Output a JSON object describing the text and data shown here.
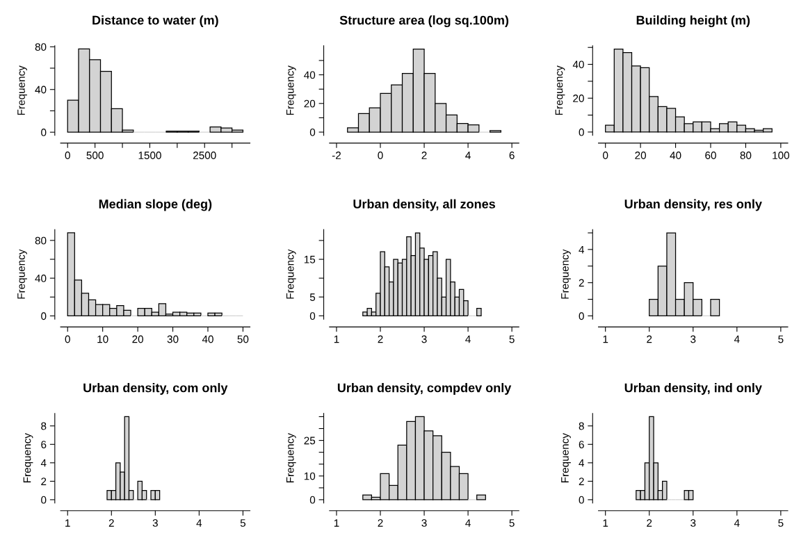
{
  "chart_data": [
    {
      "type": "histogram",
      "title": "Distance to water (m)",
      "ylabel": "Frequency",
      "color": "#d3d3d3",
      "bins": [
        0,
        200,
        400,
        600,
        800,
        1000,
        1200,
        1400,
        1600,
        1800,
        2000,
        2200,
        2400,
        2600,
        2800,
        3000,
        3200
      ],
      "values": [
        30,
        78,
        68,
        57,
        22,
        2,
        0,
        0,
        0,
        1,
        1,
        1,
        0,
        5,
        4,
        2
      ],
      "xlim": [
        -128,
        3328
      ],
      "ylim": [
        -3,
        81
      ],
      "xticks": [
        0,
        500,
        {
          "value": 1000,
          "label": null
        },
        1500,
        {
          "value": 2000,
          "label": null
        },
        2500,
        {
          "value": 3000,
          "label": null
        }
      ],
      "yticks": [
        0,
        {
          "value": 20,
          "label": null
        },
        40,
        {
          "value": 60,
          "label": null
        },
        80
      ]
    },
    {
      "type": "histogram",
      "title": "Structure area (log sq.100m)",
      "ylabel": "Frequency",
      "color": "#d3d3d3",
      "bins": [
        -1.5,
        -1,
        -0.5,
        0,
        0.5,
        1,
        1.5,
        2,
        2.5,
        3,
        3.5,
        4,
        4.5,
        5,
        5.5
      ],
      "values": [
        3,
        13,
        17,
        27,
        33,
        41,
        58,
        41,
        20,
        12,
        6,
        5,
        0,
        1
      ],
      "xlim": [
        -2.32,
        6.32
      ],
      "ylim": [
        -2.3,
        60.3
      ],
      "xticks": [
        -2,
        0,
        2,
        4,
        6
      ],
      "yticks": [
        0,
        {
          "value": 10,
          "label": null
        },
        20,
        {
          "value": 30,
          "label": null
        },
        40,
        {
          "value": 50,
          "label": null
        }
      ]
    },
    {
      "type": "histogram",
      "title": "Building height (m)",
      "ylabel": "Frequency",
      "color": "#d3d3d3",
      "bins": [
        0,
        5,
        10,
        15,
        20,
        25,
        30,
        35,
        40,
        45,
        50,
        55,
        60,
        65,
        70,
        75,
        80,
        85,
        90,
        95
      ],
      "values": [
        4,
        49,
        47,
        39,
        38,
        21,
        15,
        14,
        9,
        5,
        6,
        6,
        2,
        5,
        6,
        4,
        2,
        1,
        2
      ],
      "xlim": [
        -4,
        104
      ],
      "ylim": [
        -2,
        51
      ],
      "xticks": [
        0,
        20,
        40,
        60,
        80,
        100
      ],
      "yticks": [
        0,
        {
          "value": 10,
          "label": null
        },
        20,
        {
          "value": 30,
          "label": null
        },
        40,
        {
          "value": 50,
          "label": null
        }
      ]
    },
    {
      "type": "histogram",
      "title": "Median slope (deg)",
      "ylabel": "Frequency",
      "color": "#d3d3d3",
      "bins": [
        0,
        2,
        4,
        6,
        8,
        10,
        12,
        14,
        16,
        18,
        20,
        22,
        24,
        26,
        28,
        30,
        32,
        34,
        36,
        38,
        40,
        42,
        44,
        46,
        48,
        50
      ],
      "values": [
        88,
        38,
        24,
        17,
        12,
        12,
        8,
        11,
        6,
        0,
        8,
        8,
        4,
        13,
        2,
        4,
        4,
        3,
        3,
        0,
        3,
        3,
        0,
        0,
        0
      ],
      "xlim": [
        -2,
        52
      ],
      "ylim": [
        -3.5,
        91.5
      ],
      "xticks": [
        0,
        10,
        20,
        30,
        40,
        50
      ],
      "yticks": [
        0,
        {
          "value": 20,
          "label": null
        },
        40,
        {
          "value": 60,
          "label": null
        },
        80
      ]
    },
    {
      "type": "histogram",
      "title": "Urban density, all zones",
      "ylabel": "Frequency",
      "color": "#d3d3d3",
      "bins": [
        1.6,
        1.7,
        1.8,
        1.9,
        2.0,
        2.1,
        2.2,
        2.3,
        2.4,
        2.5,
        2.6,
        2.7,
        2.8,
        2.9,
        3.0,
        3.1,
        3.2,
        3.3,
        3.4,
        3.5,
        3.6,
        3.7,
        3.8,
        3.9,
        4.0,
        4.1,
        4.2,
        4.3
      ],
      "values": [
        1,
        2,
        1,
        6,
        17,
        13,
        9,
        15,
        14,
        15,
        21,
        16,
        22,
        18,
        15,
        16,
        17,
        10,
        5,
        15,
        9,
        5,
        7,
        4,
        0,
        0,
        2
      ],
      "xlim": [
        0.84,
        5.16
      ],
      "ylim": [
        -0.9,
        22.9
      ],
      "xticks": [
        1,
        2,
        3,
        4,
        5
      ],
      "yticks": [
        0,
        5,
        {
          "value": 10,
          "label": null
        },
        15,
        {
          "value": 20,
          "label": null
        }
      ]
    },
    {
      "type": "histogram",
      "title": "Urban density, res only",
      "ylabel": "Frequency",
      "color": "#d3d3d3",
      "bins": [
        2.0,
        2.2,
        2.4,
        2.6,
        2.8,
        3.0,
        3.2,
        3.4,
        3.6
      ],
      "values": [
        1,
        3,
        5,
        1,
        2,
        1,
        0,
        1
      ],
      "xlim": [
        0.84,
        5.16
      ],
      "ylim": [
        -0.2,
        5.2
      ],
      "xticks": [
        1,
        2,
        3,
        4,
        5
      ],
      "yticks": [
        0,
        {
          "value": 1,
          "label": null
        },
        2,
        {
          "value": 3,
          "label": null
        },
        4,
        {
          "value": 5,
          "label": null
        }
      ]
    },
    {
      "type": "histogram",
      "title": "Urban density, com only",
      "ylabel": "Frequency",
      "color": "#d3d3d3",
      "bins": [
        1.9,
        2.0,
        2.1,
        2.2,
        2.3,
        2.4,
        2.5,
        2.6,
        2.7,
        2.8,
        2.9,
        3.0,
        3.1
      ],
      "values": [
        1,
        1,
        4,
        3,
        9,
        1,
        0,
        2,
        1,
        0,
        1,
        1
      ],
      "xlim": [
        0.84,
        5.16
      ],
      "ylim": [
        -0.36,
        9.36
      ],
      "xticks": [
        1,
        2,
        3,
        4,
        5
      ],
      "yticks": [
        0,
        2,
        4,
        6,
        8
      ]
    },
    {
      "type": "histogram",
      "title": "Urban density, compdev only",
      "ylabel": "Frequency",
      "color": "#d3d3d3",
      "bins": [
        1.6,
        1.8,
        2.0,
        2.2,
        2.4,
        2.6,
        2.8,
        3.0,
        3.2,
        3.4,
        3.6,
        3.8,
        4.0,
        4.2,
        4.4
      ],
      "values": [
        2,
        1,
        11,
        6,
        23,
        33,
        35,
        29,
        27,
        20,
        14,
        11,
        0,
        2
      ],
      "xlim": [
        0.84,
        5.16
      ],
      "ylim": [
        -1.4,
        36.4
      ],
      "xticks": [
        1,
        2,
        3,
        4,
        5
      ],
      "yticks": [
        0,
        {
          "value": 5,
          "label": null
        },
        10,
        {
          "value": 15,
          "label": null
        },
        {
          "value": 20,
          "label": null
        },
        25,
        {
          "value": 30,
          "label": null
        },
        {
          "value": 35,
          "label": null
        }
      ]
    },
    {
      "type": "histogram",
      "title": "Urban density, ind only",
      "ylabel": "Frequency",
      "color": "#d3d3d3",
      "bins": [
        1.7,
        1.8,
        1.9,
        2.0,
        2.1,
        2.2,
        2.3,
        2.4,
        2.5,
        2.6,
        2.7,
        2.8,
        2.9,
        3.0
      ],
      "values": [
        1,
        1,
        4,
        9,
        4,
        1,
        2,
        0,
        0,
        0,
        0,
        1,
        1
      ],
      "xlim": [
        0.84,
        5.16
      ],
      "ylim": [
        -0.36,
        9.36
      ],
      "xticks": [
        1,
        2,
        3,
        4,
        5
      ],
      "yticks": [
        0,
        2,
        4,
        6,
        8
      ]
    }
  ]
}
